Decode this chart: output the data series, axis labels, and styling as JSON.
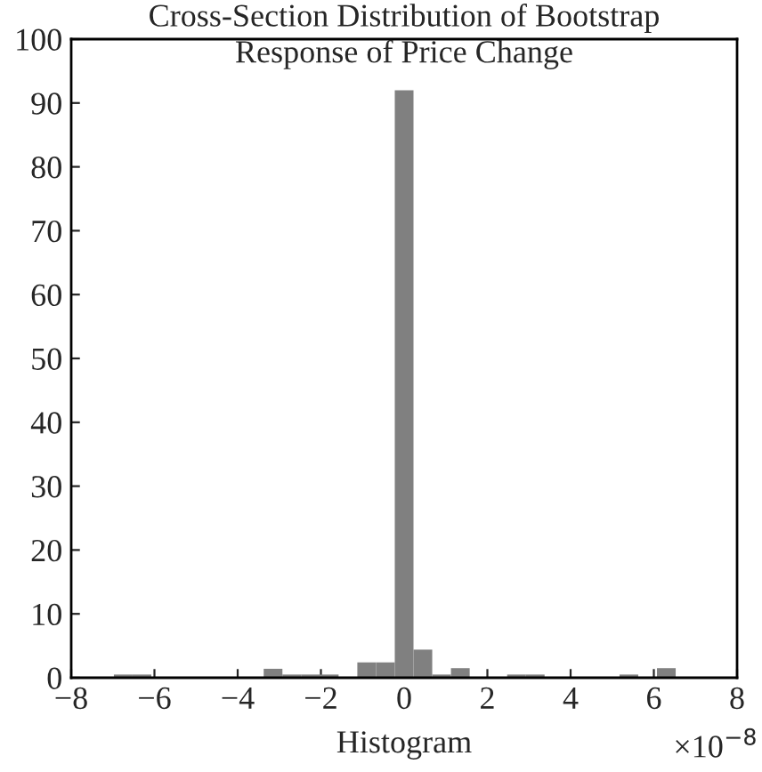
{
  "chart_data": {
    "type": "histogram",
    "title": "Cross-Section Distribution of Bootstrap\nResponse of Price Change",
    "xlabel": "Histogram",
    "annotations": [
      "×10$^{−8}$"
    ],
    "bins": [
      -6.975,
      -6.525,
      -6.075,
      -5.625,
      -5.175,
      -4.725,
      -4.275,
      -3.825,
      -3.375,
      -2.925,
      -2.475,
      -2.025,
      -1.575,
      -1.125,
      -0.675,
      -0.225,
      0.225,
      0.675,
      1.125,
      1.575,
      2.025,
      2.475,
      2.925,
      3.375,
      3.825,
      4.275,
      4.725,
      5.175,
      5.625,
      6.075,
      6.525
    ],
    "values": [
      0.5,
      0.5,
      0,
      0,
      0,
      0,
      0,
      0,
      1.4,
      0.5,
      0.5,
      0.5,
      0,
      2.4,
      2.4,
      92,
      4.4,
      0.5,
      1.5,
      0,
      0,
      0.5,
      0.5,
      0,
      0,
      0,
      0,
      0.5,
      0,
      1.5
    ],
    "color": "#808080",
    "xlim": [
      -8,
      8
    ],
    "xticks": [
      {
        "value": -8,
        "label": "−8"
      },
      {
        "value": -6,
        "label": "−6"
      },
      {
        "value": -4,
        "label": "−4"
      },
      {
        "value": -2,
        "label": "−2"
      },
      0,
      2,
      4,
      6,
      8
    ],
    "ylim": [
      0,
      100
    ],
    "yticks": [
      0,
      10,
      20,
      30,
      40,
      50,
      60,
      70,
      80,
      90,
      100
    ],
    "grid": false
  }
}
